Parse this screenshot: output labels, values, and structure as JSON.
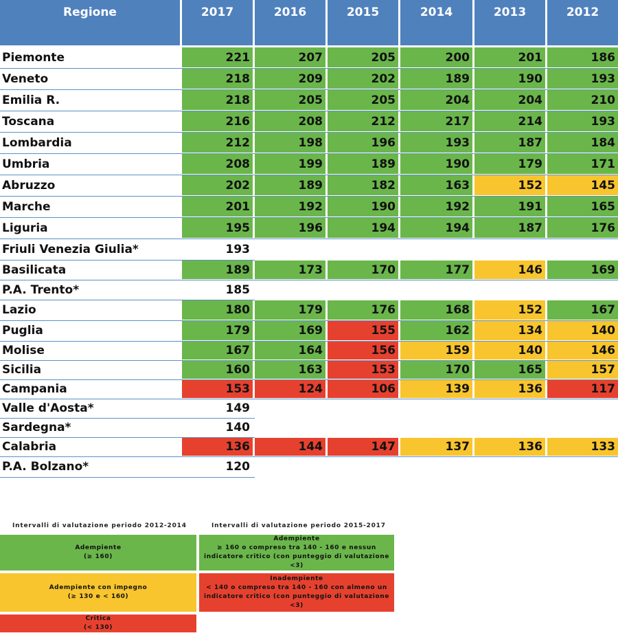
{
  "chart_data": {
    "type": "table",
    "header": {
      "region_label": "Regione",
      "years": [
        "2017",
        "2016",
        "2015",
        "2014",
        "2013",
        "2012"
      ]
    },
    "rows": [
      {
        "region": "Piemonte",
        "values": [
          "221",
          "207",
          "205",
          "200",
          "201",
          "186"
        ],
        "status": [
          "green",
          "green",
          "green",
          "green",
          "green",
          "green"
        ]
      },
      {
        "region": "Veneto",
        "values": [
          "218",
          "209",
          "202",
          "189",
          "190",
          "193"
        ],
        "status": [
          "green",
          "green",
          "green",
          "green",
          "green",
          "green"
        ]
      },
      {
        "region": "Emilia R.",
        "values": [
          "218",
          "205",
          "205",
          "204",
          "204",
          "210"
        ],
        "status": [
          "green",
          "green",
          "green",
          "green",
          "green",
          "green"
        ]
      },
      {
        "region": "Toscana",
        "values": [
          "216",
          "208",
          "212",
          "217",
          "214",
          "193"
        ],
        "status": [
          "green",
          "green",
          "green",
          "green",
          "green",
          "green"
        ]
      },
      {
        "region": "Lombardia",
        "values": [
          "212",
          "198",
          "196",
          "193",
          "187",
          "184"
        ],
        "status": [
          "green",
          "green",
          "green",
          "green",
          "green",
          "green"
        ]
      },
      {
        "region": "Umbria",
        "values": [
          "208",
          "199",
          "189",
          "190",
          "179",
          "171"
        ],
        "status": [
          "green",
          "green",
          "green",
          "green",
          "green",
          "green"
        ]
      },
      {
        "region": "Abruzzo",
        "values": [
          "202",
          "189",
          "182",
          "163",
          "152",
          "145"
        ],
        "status": [
          "green",
          "green",
          "green",
          "green",
          "yellow",
          "yellow"
        ]
      },
      {
        "region": "Marche",
        "values": [
          "201",
          "192",
          "190",
          "192",
          "191",
          "165"
        ],
        "status": [
          "green",
          "green",
          "green",
          "green",
          "green",
          "green"
        ]
      },
      {
        "region": "Liguria",
        "values": [
          "195",
          "196",
          "194",
          "194",
          "187",
          "176"
        ],
        "status": [
          "green",
          "green",
          "green",
          "green",
          "green",
          "green"
        ]
      },
      {
        "region": "Friuli Venezia Giulia*",
        "values": [
          "193",
          "",
          "",
          "",
          "",
          ""
        ],
        "status": [
          "white",
          "white",
          "white",
          "white",
          "white",
          "white"
        ]
      },
      {
        "region": "Basilicata",
        "values": [
          "189",
          "173",
          "170",
          "177",
          "146",
          "169"
        ],
        "status": [
          "green",
          "green",
          "green",
          "green",
          "yellow",
          "green"
        ]
      },
      {
        "region": "P.A. Trento*",
        "values": [
          "185",
          "",
          "",
          "",
          "",
          ""
        ],
        "status": [
          "white",
          "white",
          "white",
          "white",
          "white",
          "white"
        ]
      },
      {
        "region": "Lazio",
        "values": [
          "180",
          "179",
          "176",
          "168",
          "152",
          "167"
        ],
        "status": [
          "green",
          "green",
          "green",
          "green",
          "yellow",
          "green"
        ]
      },
      {
        "region": "Puglia",
        "values": [
          "179",
          "169",
          "155",
          "162",
          "134",
          "140"
        ],
        "status": [
          "green",
          "green",
          "red",
          "green",
          "yellow",
          "yellow"
        ]
      },
      {
        "region": "Molise",
        "values": [
          "167",
          "164",
          "156",
          "159",
          "140",
          "146"
        ],
        "status": [
          "green",
          "green",
          "red",
          "yellow",
          "yellow",
          "yellow"
        ]
      },
      {
        "region": "Sicilia",
        "values": [
          "160",
          "163",
          "153",
          "170",
          "165",
          "157"
        ],
        "status": [
          "green",
          "green",
          "red",
          "green",
          "green",
          "yellow"
        ]
      },
      {
        "region": "Campania",
        "values": [
          "153",
          "124",
          "106",
          "139",
          "136",
          "117"
        ],
        "status": [
          "red",
          "red",
          "red",
          "yellow",
          "yellow",
          "red"
        ]
      },
      {
        "region": "Valle d'Aosta*",
        "values": [
          "149",
          "",
          "",
          "",
          "",
          ""
        ],
        "status": [
          "white",
          "white",
          "white",
          "white",
          "white",
          "white"
        ]
      },
      {
        "region": "Sardegna*",
        "values": [
          "140",
          "",
          "",
          "",
          "",
          ""
        ],
        "status": [
          "white",
          "white",
          "white",
          "white",
          "white",
          "white"
        ]
      },
      {
        "region": "Calabria",
        "values": [
          "136",
          "144",
          "147",
          "137",
          "136",
          "133"
        ],
        "status": [
          "red",
          "red",
          "red",
          "yellow",
          "yellow",
          "yellow"
        ]
      },
      {
        "region": "P.A. Bolzano*",
        "values": [
          "120",
          "",
          "",
          "",
          "",
          ""
        ],
        "status": [
          "white",
          "white",
          "white",
          "white",
          "white",
          "white"
        ]
      }
    ],
    "colors": {
      "green": "#6ab64b",
      "yellow": "#f8c52e",
      "red": "#e6412f",
      "header": "#4f81bd"
    }
  },
  "legend": {
    "left": {
      "title": "Intervalli di valutazione periodo 2012-2014",
      "items": [
        {
          "label": "Adempiente",
          "range": "(≥ 160)"
        },
        {
          "label": "Adempiente con impegno",
          "range": "(≥ 130 e < 160)"
        },
        {
          "label": "Critica",
          "range": "(< 130)"
        }
      ]
    },
    "right": {
      "title": "Intervalli di valutazione periodo 2015-2017",
      "items": [
        {
          "label": "Adempiente",
          "desc": "≥ 160 o compreso tra 140 - 160 e nessun indicatore critico (con punteggio di valutazione <3)"
        },
        {
          "label": "Inadempiente",
          "desc": "< 140 o compreso tra 140 - 160 con almeno un indicatore critico (con punteggio di valutazione <3)"
        }
      ]
    }
  }
}
